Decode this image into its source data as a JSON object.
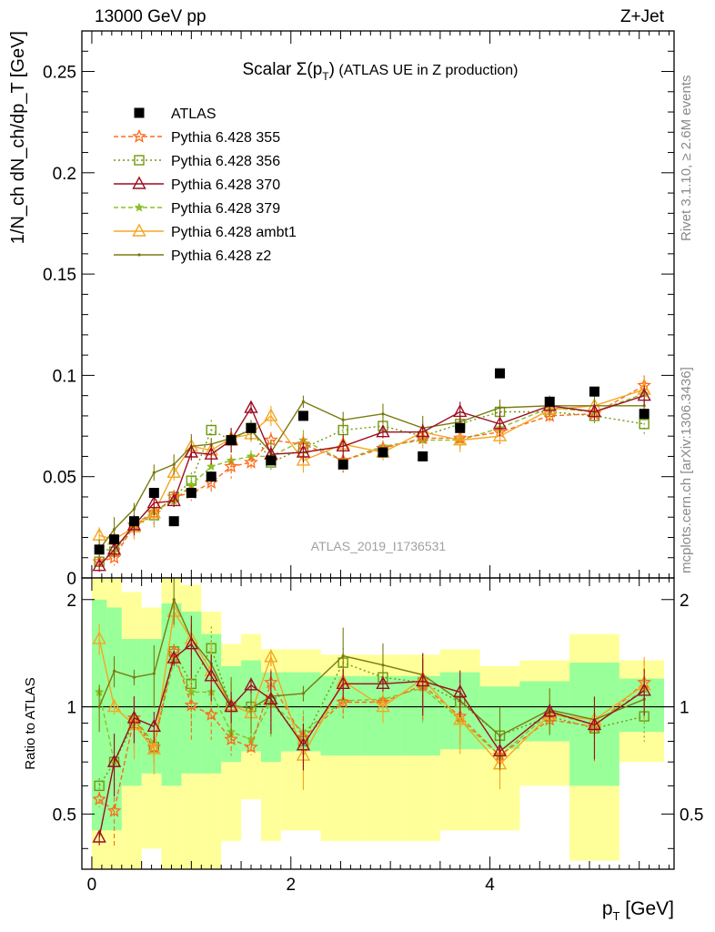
{
  "header": {
    "energy_label": "13000 GeV pp",
    "process_label": "Z+Jet"
  },
  "side_labels": {
    "rivet": "Rivet 3.1.10, ≥ 2.6M events",
    "mcplots": "mcplots.cern.ch [arXiv:1306.3436]"
  },
  "watermark": "ATLAS_2019_I1736531",
  "colors": {
    "ATLAS": "#000000",
    "p355": "#ff6a1a",
    "p356": "#6e9a10",
    "p370": "#9c0e22",
    "p379": "#8cbf26",
    "ambt1": "#f5a623",
    "z2": "#7a7a10",
    "band_outer": "#ffff99",
    "band_inner": "#99ff99"
  },
  "chart_data": [
    {
      "type": "scatter",
      "panel": "main",
      "title": "Scalar Σ(p_T) (ATLAS UE in Z production)",
      "title_main": "Scalar Σ(p",
      "title_sub": "T",
      "title_close": ")",
      "title_rest": " (ATLAS UE in Z production)",
      "ylabel": "1/N_ch dN_ch/dp_T [GeV]",
      "ylim": [
        0,
        0.27
      ],
      "xlim": [
        -0.1,
        5.85
      ],
      "yticks": [
        0,
        0.05,
        0.1,
        0.15,
        0.2,
        0.25
      ],
      "ytick_labels": [
        "0",
        "0.05",
        "0.1",
        "0.15",
        "0.2",
        "0.25"
      ],
      "legend_position": "top-left",
      "x": [
        0.075,
        0.225,
        0.425,
        0.625,
        0.825,
        1.0,
        1.2,
        1.4,
        1.6,
        1.8,
        2.125,
        2.525,
        2.925,
        3.325,
        3.7,
        4.1,
        4.6,
        5.05,
        5.55
      ],
      "series": [
        {
          "name": "ATLAS",
          "key": "ATLAS",
          "style": "square_filled",
          "values": [
            0.014,
            0.019,
            0.028,
            0.042,
            0.028,
            0.042,
            0.05,
            0.068,
            0.074,
            0.058,
            0.08,
            0.056,
            0.062,
            0.06,
            0.074,
            0.101,
            0.087,
            0.092,
            0.081
          ]
        },
        {
          "name": "Pythia 6.428 355",
          "key": "p355",
          "style": "star_dashed",
          "values": [
            0.008,
            0.01,
            0.026,
            0.032,
            0.04,
            0.042,
            0.047,
            0.055,
            0.057,
            0.068,
            0.066,
            0.058,
            0.064,
            0.069,
            0.069,
            0.072,
            0.08,
            0.081,
            0.095
          ]
        },
        {
          "name": "Pythia 6.428 356",
          "key": "p356",
          "style": "square_open_dotted",
          "values": [
            0.008,
            0.013,
            0.025,
            0.031,
            0.04,
            0.048,
            0.073,
            0.068,
            0.074,
            0.057,
            0.064,
            0.073,
            0.075,
            0.07,
            0.076,
            0.082,
            0.082,
            0.08,
            0.076
          ]
        },
        {
          "name": "Pythia 6.428 370",
          "key": "p370",
          "style": "triangle_open_solid",
          "values": [
            0.006,
            0.014,
            0.026,
            0.037,
            0.038,
            0.062,
            0.061,
            0.068,
            0.084,
            0.061,
            0.062,
            0.065,
            0.072,
            0.072,
            0.082,
            0.076,
            0.085,
            0.082,
            0.09
          ]
        },
        {
          "name": "Pythia 6.428 379",
          "key": "p379",
          "style": "star_small_dashed",
          "values": [
            0.015,
            0.013,
            0.026,
            0.033,
            0.038,
            0.046,
            0.055,
            0.058,
            0.06,
            0.06,
            0.068,
            0.058,
            0.065,
            0.068,
            0.068,
            0.074,
            0.084,
            0.082,
            0.091
          ]
        },
        {
          "name": "Pythia 6.428 ambt1",
          "key": "ambt1",
          "style": "triangle_open_orange",
          "values": [
            0.021,
            0.019,
            0.025,
            0.032,
            0.052,
            0.065,
            0.063,
            0.069,
            0.071,
            0.08,
            0.058,
            0.066,
            0.062,
            0.072,
            0.068,
            0.07,
            0.083,
            0.085,
            0.093
          ]
        },
        {
          "name": "Pythia 6.428 z2",
          "key": "z2",
          "style": "dot_solid",
          "values": [
            0.014,
            0.024,
            0.034,
            0.052,
            0.056,
            0.065,
            0.066,
            0.069,
            0.073,
            0.062,
            0.087,
            0.078,
            0.081,
            0.074,
            0.077,
            0.084,
            0.085,
            0.085,
            0.085
          ]
        }
      ]
    },
    {
      "type": "line",
      "panel": "ratio",
      "ylabel": "Ratio to ATLAS",
      "xlabel_main": "p",
      "xlabel_sub": "T",
      "xlabel_unit": " [GeV]",
      "ylim": [
        0.35,
        2.3
      ],
      "yticks": [
        0.5,
        1,
        2
      ],
      "ytick_labels": [
        "0.5",
        "1",
        "2"
      ],
      "xticks": [
        0,
        2,
        4
      ],
      "xtick_labels": [
        "0",
        "2",
        "4"
      ],
      "bin_edges": [
        0.0,
        0.15,
        0.3,
        0.5,
        0.7,
        0.9,
        1.1,
        1.3,
        1.5,
        1.7,
        1.9,
        2.3,
        2.7,
        3.1,
        3.5,
        3.9,
        4.3,
        4.8,
        5.3,
        5.75
      ],
      "band_outer": [
        [
          0.25,
          2.3
        ],
        [
          0.25,
          2.3
        ],
        [
          0.35,
          2.1
        ],
        [
          0.4,
          1.9
        ],
        [
          0.35,
          2.3
        ],
        [
          0.35,
          2.2
        ],
        [
          0.35,
          1.85
        ],
        [
          0.42,
          1.5
        ],
        [
          0.55,
          1.6
        ],
        [
          0.42,
          1.45
        ],
        [
          0.45,
          1.45
        ],
        [
          0.42,
          1.4
        ],
        [
          0.42,
          1.4
        ],
        [
          0.42,
          1.4
        ],
        [
          0.45,
          1.45
        ],
        [
          0.45,
          1.3
        ],
        [
          0.6,
          1.35
        ],
        [
          0.37,
          1.6
        ],
        [
          0.7,
          1.35
        ]
      ],
      "band_inner": [
        [
          0.45,
          2.0
        ],
        [
          0.45,
          1.9
        ],
        [
          0.6,
          1.55
        ],
        [
          0.65,
          1.55
        ],
        [
          0.6,
          1.95
        ],
        [
          0.65,
          1.85
        ],
        [
          0.65,
          1.6
        ],
        [
          0.7,
          1.3
        ],
        [
          0.75,
          1.35
        ],
        [
          0.7,
          1.25
        ],
        [
          0.75,
          1.25
        ],
        [
          0.73,
          1.22
        ],
        [
          0.73,
          1.22
        ],
        [
          0.73,
          1.22
        ],
        [
          0.76,
          1.25
        ],
        [
          0.76,
          1.14
        ],
        [
          0.8,
          1.18
        ],
        [
          0.6,
          1.33
        ],
        [
          0.85,
          1.2
        ]
      ],
      "series": [
        {
          "name": "Pythia 6.428 355",
          "key": "p355",
          "values": [
            0.55,
            0.51,
            0.93,
            0.77,
            1.43,
            1.01,
            0.95,
            0.81,
            0.77,
            1.17,
            0.82,
            1.03,
            1.03,
            1.15,
            0.94,
            0.73,
            0.92,
            0.88,
            1.17
          ]
        },
        {
          "name": "Pythia 6.428 356",
          "key": "p356",
          "values": [
            0.6,
            0.7,
            0.9,
            0.77,
            1.43,
            1.16,
            1.46,
            1.0,
            1.0,
            1.03,
            0.8,
            1.33,
            1.21,
            1.17,
            1.03,
            0.83,
            0.94,
            0.87,
            0.94
          ]
        },
        {
          "name": "Pythia 6.428 370",
          "key": "p370",
          "values": [
            0.43,
            0.7,
            0.93,
            0.88,
            1.37,
            1.5,
            1.22,
            1.0,
            1.15,
            1.05,
            0.78,
            1.16,
            1.16,
            1.18,
            1.1,
            0.75,
            0.97,
            0.89,
            1.11
          ]
        },
        {
          "name": "Pythia 6.428 379",
          "key": "p379",
          "values": [
            1.1,
            0.7,
            0.93,
            0.79,
            1.35,
            1.1,
            1.1,
            0.85,
            0.81,
            1.03,
            0.85,
            1.04,
            1.05,
            1.13,
            0.92,
            0.73,
            0.96,
            0.89,
            1.12
          ]
        },
        {
          "name": "Pythia 6.428 ambt1",
          "key": "ambt1",
          "values": [
            1.55,
            1.0,
            0.89,
            0.76,
            1.85,
            1.55,
            1.26,
            1.01,
            0.96,
            1.38,
            0.73,
            1.18,
            1.0,
            1.2,
            0.92,
            0.69,
            0.95,
            0.92,
            1.15
          ]
        },
        {
          "name": "Pythia 6.428 z2",
          "key": "z2",
          "values": [
            1.0,
            1.26,
            1.21,
            1.24,
            2.0,
            1.55,
            1.32,
            1.01,
            0.99,
            1.07,
            1.09,
            1.39,
            1.31,
            1.23,
            1.04,
            0.83,
            0.98,
            0.92,
            1.05
          ]
        }
      ]
    }
  ]
}
